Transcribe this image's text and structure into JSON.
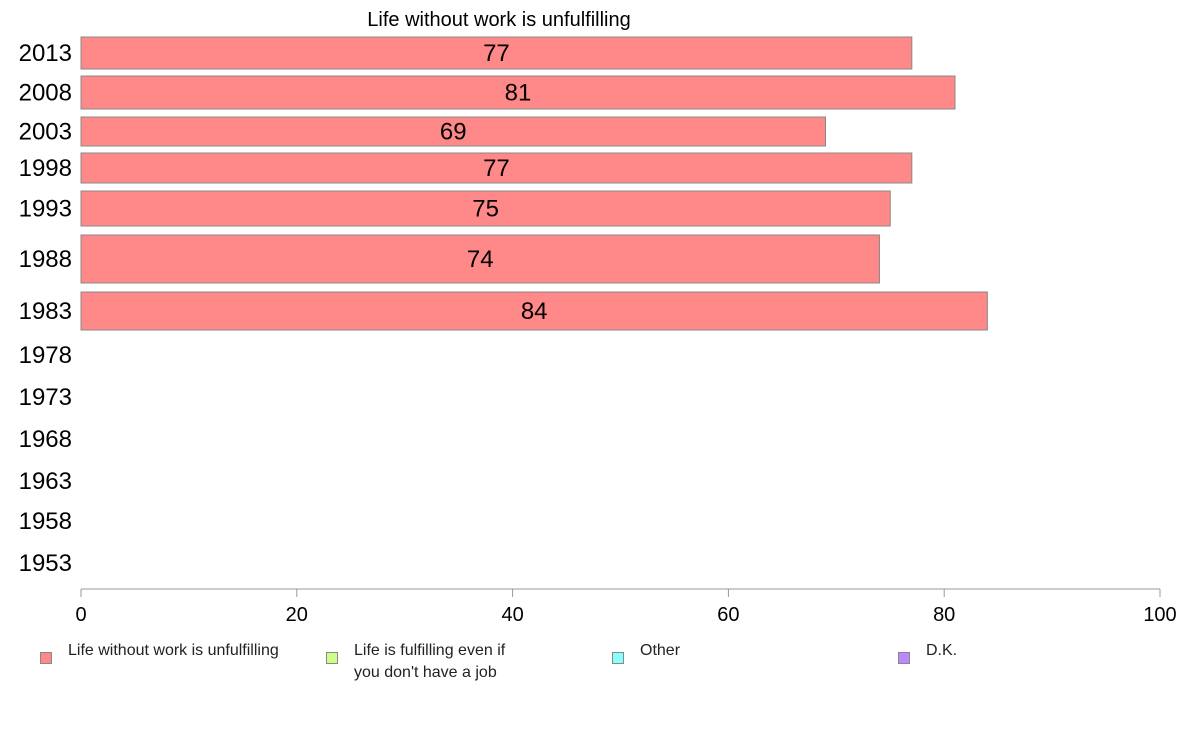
{
  "chart_data": {
    "type": "bar",
    "orientation": "horizontal",
    "title": "Life without work is unfulfilling",
    "categories": [
      "2013",
      "2008",
      "2003",
      "1998",
      "1993",
      "1988",
      "1983",
      "1978",
      "1973",
      "1968",
      "1963",
      "1958",
      "1953"
    ],
    "series": [
      {
        "name": "Life without work is unfulfilling",
        "color": "#ff8888",
        "values": [
          77,
          81,
          69,
          77,
          75,
          74,
          84,
          null,
          null,
          null,
          null,
          null,
          null
        ]
      }
    ],
    "xlim": [
      0,
      100
    ],
    "xticks": [
      0,
      20,
      40,
      60,
      80,
      100
    ],
    "grid": false,
    "legend_position": "bottom"
  },
  "legend": [
    {
      "label": "Life without work is unfulfilling",
      "color": "#ff8888"
    },
    {
      "label": "Life is fulfilling even if\nyou don't have a job",
      "color": "#ccff88"
    },
    {
      "label": "Other",
      "color": "#88ffff"
    },
    {
      "label": "D.K.",
      "color": "#bb88ff"
    }
  ]
}
